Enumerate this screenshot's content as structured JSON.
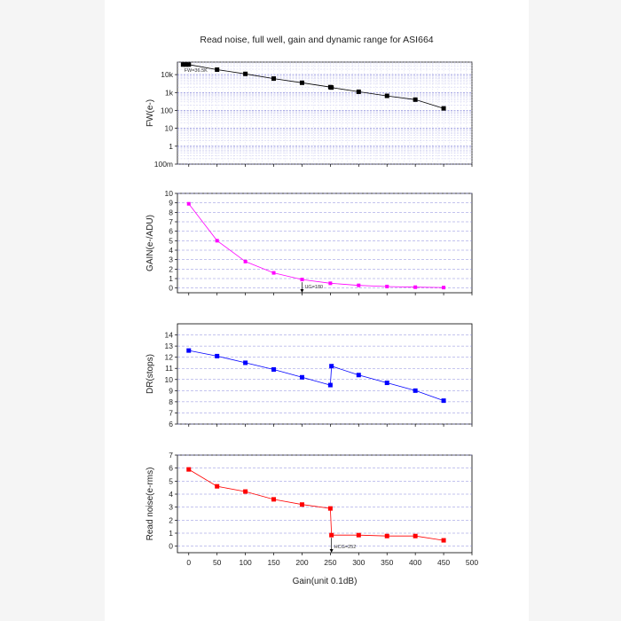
{
  "chart_data": {
    "type": "line",
    "title": "Read noise, full well, gain and dynamic range for ASI664",
    "xlabel": "Gain(unit 0.1dB)",
    "xlim": [
      -20,
      500
    ],
    "xticks": [
      0,
      50,
      100,
      150,
      200,
      250,
      300,
      350,
      400,
      450,
      500
    ],
    "xtick_labels": [
      "0",
      "50",
      "100",
      "150",
      "200",
      "250",
      "300",
      "350",
      "400",
      "450",
      "500"
    ],
    "grid": true,
    "panels": [
      {
        "id": "fw",
        "ylabel": "FW(e-)",
        "scale": "log",
        "ylim": [
          0.1,
          50000
        ],
        "yticks": [
          0.1,
          1,
          10,
          100,
          1000,
          10000
        ],
        "ytick_labels": [
          "100m",
          "1",
          "10",
          "100",
          "1k",
          "10k"
        ],
        "color": "#000000",
        "x": [
          -10,
          -5,
          0,
          50,
          100,
          150,
          200,
          250,
          252,
          300,
          350,
          400,
          450
        ],
        "y": [
          36500,
          36500,
          36500,
          19000,
          11000,
          6000,
          3500,
          2000,
          1900,
          1100,
          650,
          400,
          130
        ],
        "annotation": {
          "text": "FW=36.5K",
          "x": -8,
          "y": 18000
        }
      },
      {
        "id": "gain",
        "ylabel": "GAIN(e-/ADU)",
        "scale": "linear",
        "ylim": [
          -0.5,
          10
        ],
        "yticks": [
          0,
          1,
          2,
          3,
          4,
          5,
          6,
          7,
          8,
          9,
          10
        ],
        "ytick_labels": [
          "0",
          "1",
          "2",
          "3",
          "4",
          "5",
          "6",
          "7",
          "8",
          "9",
          "10"
        ],
        "color": "#ff00ff",
        "x": [
          0,
          50,
          100,
          150,
          200,
          250,
          300,
          350,
          400,
          450
        ],
        "y": [
          8.9,
          5.0,
          2.8,
          1.6,
          0.9,
          0.5,
          0.28,
          0.16,
          0.09,
          0.05
        ],
        "annotation": {
          "text": "UG=180",
          "x": 200,
          "y": 0.9,
          "arrow_to": -0.5
        }
      },
      {
        "id": "dr",
        "ylabel": "DR(stops)",
        "scale": "linear",
        "ylim": [
          6,
          15
        ],
        "yticks": [
          6,
          7,
          8,
          9,
          10,
          11,
          12,
          13,
          14
        ],
        "ytick_labels": [
          "6",
          "7",
          "8",
          "9",
          "10",
          "11",
          "12",
          "13",
          "14"
        ],
        "color": "#0000ff",
        "x": [
          0,
          50,
          100,
          150,
          200,
          250,
          252,
          300,
          350,
          400,
          450
        ],
        "y": [
          12.6,
          12.1,
          11.5,
          10.9,
          10.2,
          9.5,
          11.2,
          10.4,
          9.7,
          9.0,
          8.1
        ]
      },
      {
        "id": "rn",
        "ylabel": "Read noise(e-rms)",
        "scale": "linear",
        "ylim": [
          -0.5,
          7
        ],
        "yticks": [
          0,
          1,
          2,
          3,
          4,
          5,
          6,
          7
        ],
        "ytick_labels": [
          "0",
          "1",
          "2",
          "3",
          "4",
          "5",
          "6",
          "7"
        ],
        "color": "#ff0000",
        "x": [
          0,
          50,
          100,
          150,
          200,
          250,
          252,
          300,
          350,
          400,
          450
        ],
        "y": [
          5.9,
          4.6,
          4.2,
          3.6,
          3.2,
          2.9,
          0.85,
          0.85,
          0.78,
          0.78,
          0.45
        ],
        "annotation": {
          "text": "HCG=252",
          "x": 252,
          "y": 0.85,
          "arrow_to": -0.5
        }
      }
    ]
  }
}
